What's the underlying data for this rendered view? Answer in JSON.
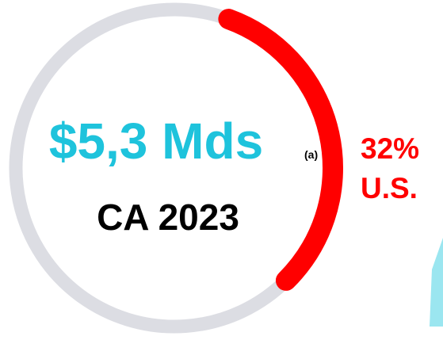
{
  "chart_data": {
    "type": "donut",
    "title": "$5,3 Mds",
    "title_note": "(a)",
    "subtitle": "CA 2023",
    "categories": [
      "U.S.",
      null
    ],
    "values": [
      32,
      68
    ],
    "value_labels": [
      "32%",
      null
    ],
    "colors": [
      "#ff0000",
      "#dcdde3"
    ],
    "title_color": "#1ec3dc"
  }
}
